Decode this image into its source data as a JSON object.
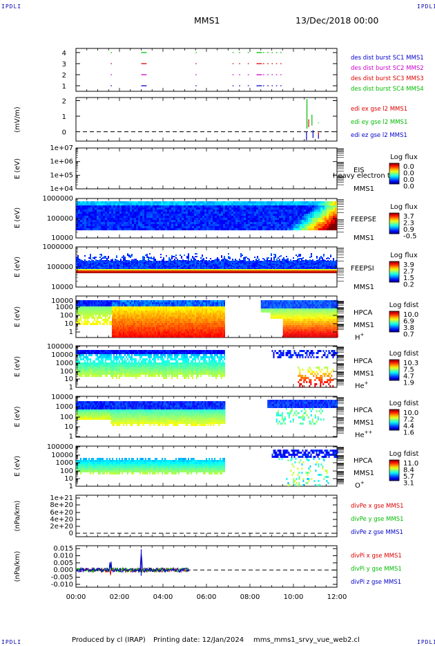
{
  "corner_label": "IPDLI",
  "header": {
    "spacecraft": "MMS1",
    "datetime": "13/Dec/2018 00:00"
  },
  "footer": {
    "produced_by": "Produced by cl (IRAP)",
    "printing_date": "Printing date: 12/Jan/2024",
    "filename": "mms_mms1_srvy_vue_web2.cl"
  },
  "time_axis": {
    "ticks": [
      "00:00",
      "02:00",
      "04:00",
      "06:00",
      "08:00",
      "10:00",
      "12:00"
    ]
  },
  "chart_data": [
    {
      "type": "scatter",
      "id": "burst",
      "yticks": [
        "1",
        "2",
        "3",
        "4"
      ],
      "legend": [
        {
          "label": "des dist burst SC1 MMS1",
          "color": "#0000cc",
          "y": 1
        },
        {
          "label": "des dist burst SC2 MMS2",
          "color": "#cc00cc",
          "y": 2
        },
        {
          "label": "des dist burst SC3 MMS3",
          "color": "#dd0000",
          "y": 3
        },
        {
          "label": "des dist burst SC4 MMS4",
          "color": "#00bb00",
          "y": 4
        }
      ],
      "segments_hours": [
        [
          1.6,
          1.65
        ],
        [
          3.0,
          3.25
        ],
        [
          5.5,
          5.55
        ],
        [
          7.2,
          7.25
        ],
        [
          7.5,
          7.55
        ],
        [
          7.9,
          7.95
        ],
        [
          8.3,
          8.55
        ],
        [
          8.6,
          8.65
        ],
        [
          8.8,
          8.85
        ],
        [
          9.0,
          9.05
        ],
        [
          9.2,
          9.25
        ],
        [
          9.4,
          9.45
        ]
      ]
    },
    {
      "type": "line",
      "id": "edi",
      "ylabel": "(mV/m)",
      "yticks": [
        "2",
        "1",
        "0"
      ],
      "ylim": [
        -0.6,
        2.2
      ],
      "legend": [
        {
          "label": "edi ex gse l2 MMS1",
          "color": "#dd0000"
        },
        {
          "label": "edi ey gse l2 MMS1",
          "color": "#00bb00"
        },
        {
          "label": "edi ez gse l2 MMS1",
          "color": "#0000cc"
        }
      ]
    },
    {
      "type": "heatmap",
      "id": "eis",
      "ylabel": "E (eV)",
      "yticks": [
        "1e+07",
        "1e+06",
        "1e+05",
        "1e+04"
      ],
      "instrument": [
        "EIS",
        "MMS1"
      ],
      "overlay_text": "Heavy electron to",
      "colorbar": {
        "title": "Log flux",
        "ticks": [
          "0.0",
          "0.0",
          "0.0",
          "0.0"
        ]
      }
    },
    {
      "type": "heatmap",
      "id": "feepse",
      "ylabel": "E (eV)",
      "yticks": [
        "1000000",
        "100000",
        "10000"
      ],
      "instrument": [
        "FEEPSE",
        "MMS1"
      ],
      "colorbar": {
        "title": "Log flux",
        "ticks": [
          "3.7",
          "2.3",
          "0.9",
          "-0.5"
        ]
      }
    },
    {
      "type": "heatmap",
      "id": "feepsi",
      "ylabel": "E (eV)",
      "yticks": [
        "1000000",
        "100000",
        "10000"
      ],
      "instrument": [
        "FEEPSI",
        "MMS1"
      ],
      "colorbar": {
        "title": "Log flux",
        "ticks": [
          "3.9",
          "2.7",
          "1.5",
          "0.2"
        ]
      }
    },
    {
      "type": "heatmap",
      "id": "hpca_h",
      "ylabel": "E (eV)",
      "yticks": [
        "10000",
        "1000",
        "100",
        "10",
        "1"
      ],
      "instrument": [
        "HPCA",
        "MMS1",
        "H+"
      ],
      "colorbar": {
        "title": "Log fdist",
        "ticks": [
          "10.0",
          "6.9",
          "3.8",
          "0.7"
        ]
      }
    },
    {
      "type": "heatmap",
      "id": "hpca_he",
      "ylabel": "E (eV)",
      "yticks": [
        "100000",
        "10000",
        "1000",
        "100",
        "10",
        "1"
      ],
      "instrument": [
        "HPCA",
        "MMS1",
        "He+"
      ],
      "colorbar": {
        "title": "Log fdist",
        "ticks": [
          "10.3",
          "7.5",
          "4.7",
          "1.9"
        ]
      }
    },
    {
      "type": "heatmap",
      "id": "hpca_hepp",
      "ylabel": "E (eV)",
      "yticks": [
        "10000",
        "1000",
        "100",
        "10",
        "1"
      ],
      "instrument": [
        "HPCA",
        "MMS1",
        "He++"
      ],
      "colorbar": {
        "title": "Log fdist",
        "ticks": [
          "10.0",
          "7.2",
          "4.4",
          "1.6"
        ]
      }
    },
    {
      "type": "heatmap",
      "id": "hpca_o",
      "ylabel": "E (eV)",
      "yticks": [
        "100000",
        "10000",
        "1000",
        "100",
        "10",
        "1"
      ],
      "instrument": [
        "HPCA",
        "MMS1",
        "O+"
      ],
      "colorbar": {
        "title": "Log fdist",
        "ticks": [
          "11.0",
          "8.4",
          "5.7",
          "3.1"
        ]
      }
    },
    {
      "type": "line",
      "id": "divpe",
      "ylabel": "(nPa/km)",
      "yticks": [
        "1e+21",
        "8e+20",
        "6e+20",
        "4e+20",
        "2e+20",
        "0"
      ],
      "legend": [
        {
          "label": "divPe x gse MMS1",
          "color": "#dd0000"
        },
        {
          "label": "divPe y gse MMS1",
          "color": "#00bb00"
        },
        {
          "label": "divPe z gse MMS1",
          "color": "#0000cc"
        }
      ]
    },
    {
      "type": "line",
      "id": "divpi",
      "ylabel": "(nPa/km)",
      "yticks": [
        "0.015",
        "0.010",
        "0.005",
        "0.000",
        "-0.005",
        "-0.010"
      ],
      "ylim": [
        -0.012,
        0.017
      ],
      "legend": [
        {
          "label": "divPi x gse MMS1",
          "color": "#dd0000"
        },
        {
          "label": "divPi y gse MMS1",
          "color": "#00bb00"
        },
        {
          "label": "divPi z gse MMS1",
          "color": "#0000cc"
        }
      ]
    }
  ]
}
